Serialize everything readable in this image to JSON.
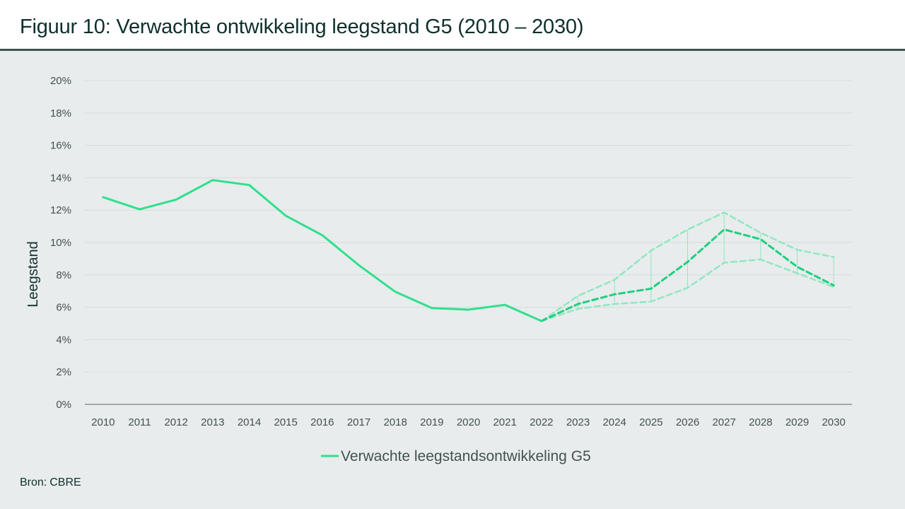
{
  "header": {
    "title": "Figuur 10: Verwachte ontwikkeling leegstand G5 (2010 – 2030)"
  },
  "footer": {
    "source_label": "Bron:",
    "source_value": "CBRE"
  },
  "colors": {
    "series": "#2fe08c",
    "forecast_main": "#1fcf80",
    "forecast_band": "#8fe8bf",
    "grid": "#d5dbdc",
    "axis": "#5a6a69",
    "text": "#0f2f2c",
    "background": "#e8eced"
  },
  "chart_data": {
    "type": "line",
    "title": "",
    "ylabel": "Leegstand",
    "xlabel": "",
    "ylim": [
      0,
      20
    ],
    "yticks": [
      "0%",
      "2%",
      "4%",
      "6%",
      "8%",
      "10%",
      "12%",
      "14%",
      "16%",
      "18%",
      "20%"
    ],
    "categories": [
      "2010",
      "2011",
      "2012",
      "2013",
      "2014",
      "2015",
      "2016",
      "2017",
      "2018",
      "2019",
      "2020",
      "2021",
      "2022",
      "2023",
      "2024",
      "2025",
      "2026",
      "2027",
      "2028",
      "2029",
      "2030"
    ],
    "grid": true,
    "legend_position": "bottom",
    "series": [
      {
        "name": "Verwachte leegstandsontwikkeling G5",
        "style": "solid",
        "x": [
          "2010",
          "2011",
          "2012",
          "2013",
          "2014",
          "2015",
          "2016",
          "2017",
          "2018",
          "2019",
          "2020",
          "2021",
          "2022"
        ],
        "values": [
          12.8,
          12.05,
          12.65,
          13.85,
          13.55,
          11.65,
          10.45,
          8.6,
          6.95,
          5.95,
          5.85,
          6.15,
          5.15
        ]
      },
      {
        "style": "dashed",
        "x": [
          "2022",
          "2023",
          "2024",
          "2025",
          "2026",
          "2027",
          "2028",
          "2029",
          "2030"
        ],
        "values": [
          5.15,
          6.2,
          6.8,
          7.15,
          8.8,
          10.8,
          10.2,
          8.5,
          7.35
        ]
      },
      {
        "style": "dashed-light",
        "x": [
          "2022",
          "2023",
          "2024",
          "2025",
          "2026",
          "2027",
          "2028",
          "2029",
          "2030"
        ],
        "values": [
          5.15,
          6.7,
          7.7,
          9.5,
          10.8,
          11.85,
          10.6,
          9.55,
          9.1
        ]
      },
      {
        "style": "dashed-light",
        "x": [
          "2022",
          "2023",
          "2024",
          "2025",
          "2026",
          "2027",
          "2028",
          "2029",
          "2030"
        ],
        "values": [
          5.15,
          5.9,
          6.2,
          6.35,
          7.2,
          8.75,
          8.95,
          8.1,
          7.25
        ]
      }
    ]
  }
}
